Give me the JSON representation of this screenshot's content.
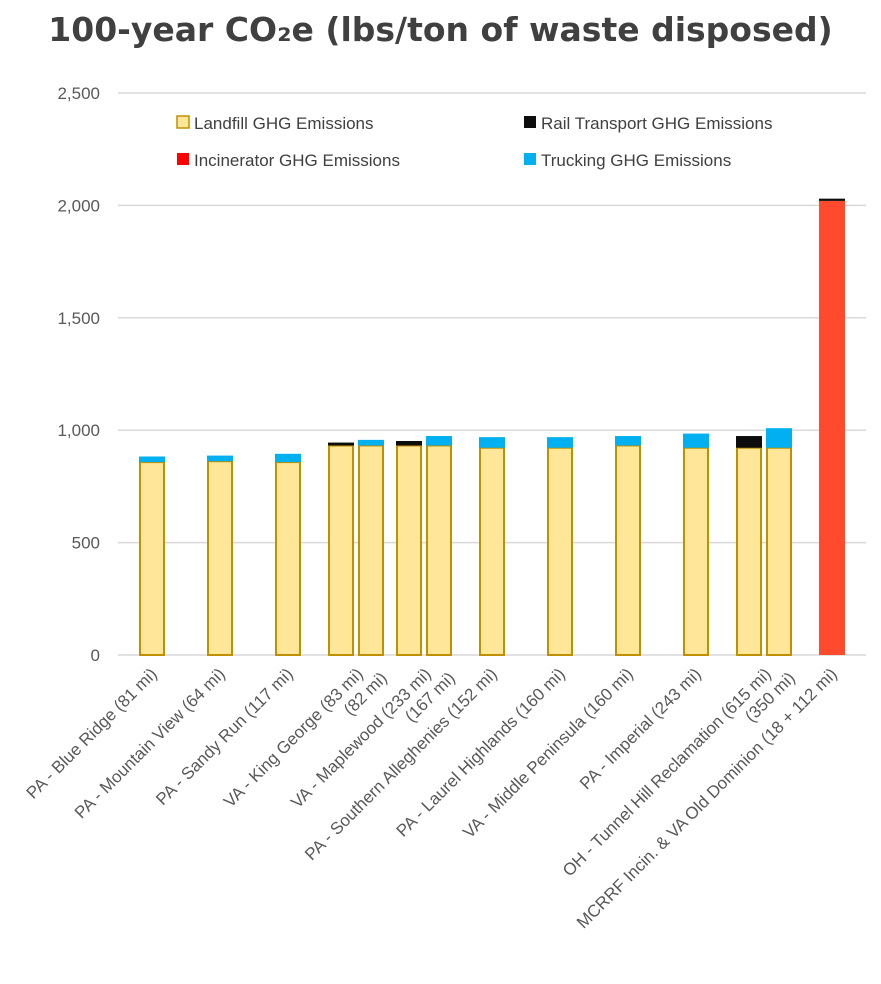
{
  "chart_data": {
    "type": "bar",
    "stacked": true,
    "title": "100-year CO₂e (lbs/ton of waste disposed)",
    "xlabel": "",
    "ylabel": "",
    "ylim": [
      0,
      2500
    ],
    "yticks": [
      0,
      500,
      1000,
      1500,
      2000,
      2500
    ],
    "ytick_labels": [
      "0",
      "500",
      "1,000",
      "1,500",
      "2,000",
      "2,500"
    ],
    "grid": true,
    "legend_position": "top",
    "groups": [
      {
        "label": [
          "PA - Blue Ridge (81 mi)"
        ],
        "bars": [
          {
            "landfill": 858,
            "incinerator": 0,
            "rail": 0,
            "trucking": 25
          }
        ]
      },
      {
        "label": [
          "PA - Mountain View (64 mi)"
        ],
        "bars": [
          {
            "landfill": 862,
            "incinerator": 0,
            "rail": 0,
            "trucking": 25
          }
        ]
      },
      {
        "label": [
          "PA - Sandy Run (117 mi)"
        ],
        "bars": [
          {
            "landfill": 858,
            "incinerator": 0,
            "rail": 0,
            "trucking": 37
          }
        ]
      },
      {
        "label": [
          "VA - King George (83 mi)",
          "(82 mi)"
        ],
        "bars": [
          {
            "landfill": 932,
            "incinerator": 0,
            "rail": 13,
            "trucking": 0
          },
          {
            "landfill": 932,
            "incinerator": 0,
            "rail": 0,
            "trucking": 25
          }
        ]
      },
      {
        "label": [
          "VA - Maplewood (233 mi)",
          "(167 mi)"
        ],
        "bars": [
          {
            "landfill": 932,
            "incinerator": 0,
            "rail": 20,
            "trucking": 0
          },
          {
            "landfill": 932,
            "incinerator": 0,
            "rail": 0,
            "trucking": 42
          }
        ]
      },
      {
        "label": [
          "PA - Southern Alleghenies (152 mi)"
        ],
        "bars": [
          {
            "landfill": 922,
            "incinerator": 0,
            "rail": 0,
            "trucking": 47
          }
        ]
      },
      {
        "label": [
          "PA - Laurel Highlands (160 mi)"
        ],
        "bars": [
          {
            "landfill": 922,
            "incinerator": 0,
            "rail": 0,
            "trucking": 47
          }
        ]
      },
      {
        "label": [
          "VA - Middle Peninsula (160 mi)"
        ],
        "bars": [
          {
            "landfill": 932,
            "incinerator": 0,
            "rail": 0,
            "trucking": 42
          }
        ]
      },
      {
        "label": [
          "PA - Imperial (243 mi)"
        ],
        "bars": [
          {
            "landfill": 922,
            "incinerator": 0,
            "rail": 0,
            "trucking": 63
          }
        ]
      },
      {
        "label": [
          "OH - Tunnel Hill Reclamation (615 mi)",
          "(350 mi)"
        ],
        "bars": [
          {
            "landfill": 922,
            "incinerator": 0,
            "rail": 52,
            "trucking": 0
          },
          {
            "landfill": 922,
            "incinerator": 0,
            "rail": 0,
            "trucking": 87
          }
        ]
      },
      {
        "label": [
          "MCRRF Incin. & VA Old Dominion (18 + 112 mi)"
        ],
        "bars": [
          {
            "landfill": 0,
            "incinerator": 2020,
            "rail": 10,
            "trucking": 0
          }
        ]
      }
    ],
    "series": [
      {
        "key": "landfill",
        "name": "Landfill GHG Emissions",
        "fill": "#FFE699",
        "stroke": "#BF9000"
      },
      {
        "key": "incinerator",
        "name": "Incinerator GHG Emissions",
        "fill": "#FF4A2E",
        "stroke": "#FF4A2E",
        "legend_fill": "#FF0000"
      },
      {
        "key": "rail",
        "name": "Rail Transport GHG Emissions",
        "fill": "#0D0D0D",
        "stroke": "#0D0D0D"
      },
      {
        "key": "trucking",
        "name": "Trucking GHG Emissions",
        "fill": "#00B0F0",
        "stroke": "#00B0F0"
      }
    ],
    "legend_order": [
      "landfill",
      "rail",
      "incinerator",
      "trucking"
    ],
    "colors": {
      "gridline": "#D9D9D9",
      "axis": "#D9D9D9",
      "tick_text": "#595959",
      "title_text": "#404040"
    }
  }
}
